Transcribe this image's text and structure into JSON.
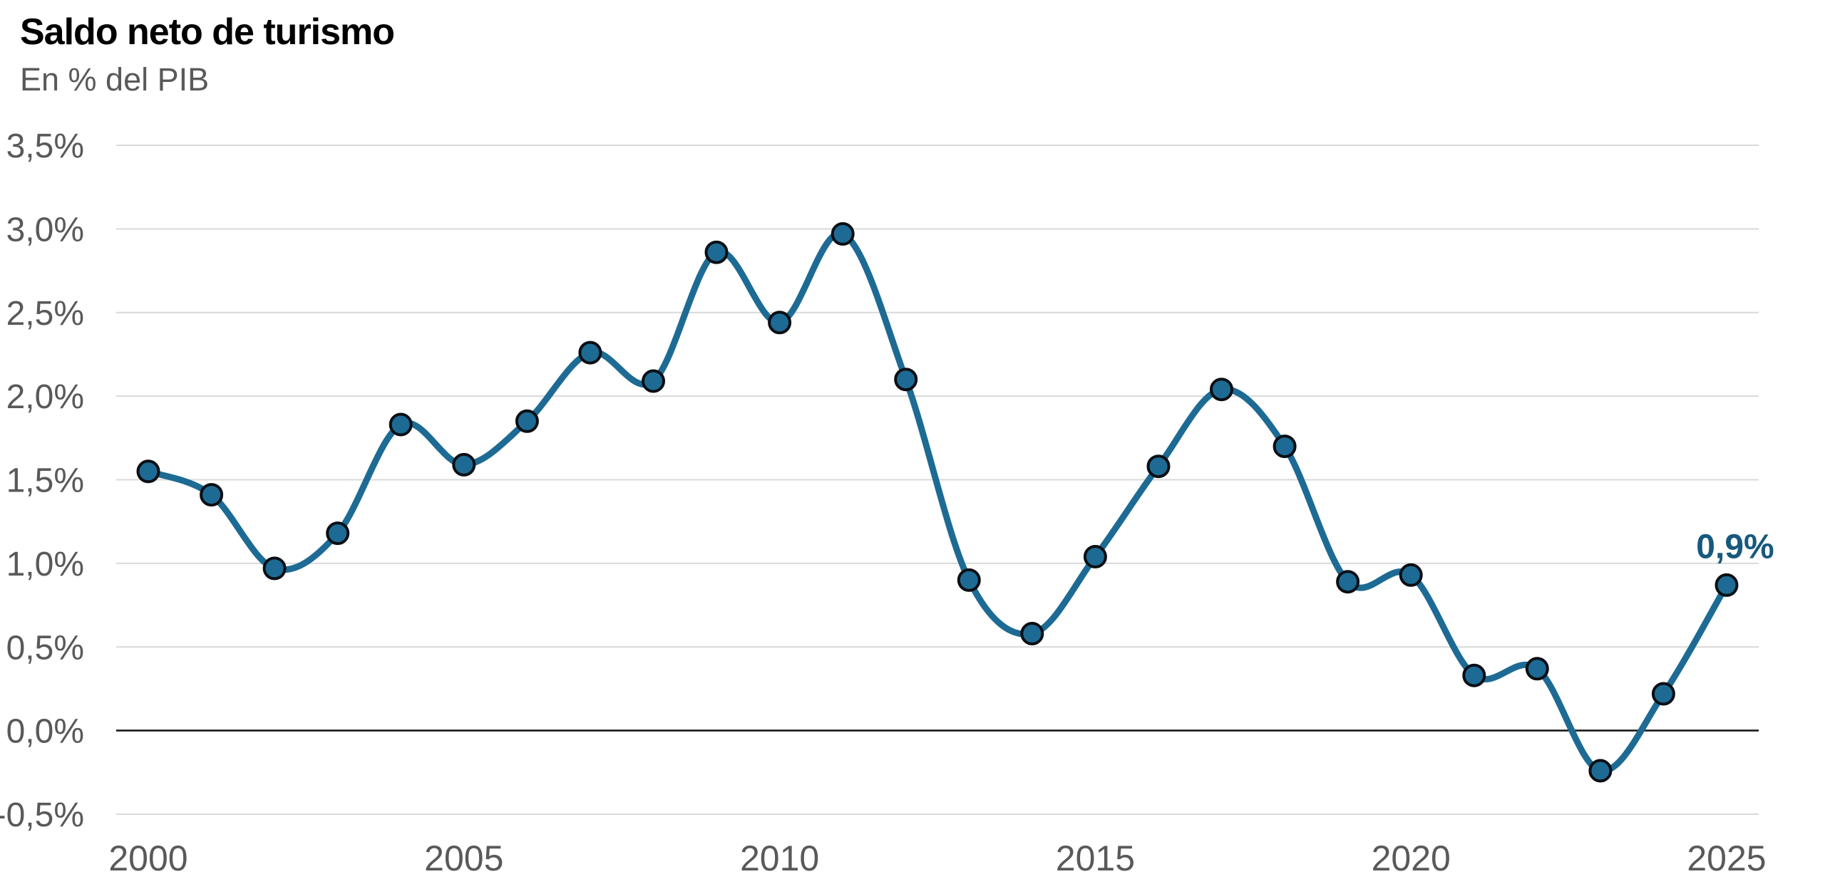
{
  "header": {
    "title": "Saldo neto de turismo",
    "subtitle": "En % del PIB"
  },
  "chart_data": {
    "type": "line",
    "title": "Saldo neto de turismo",
    "subtitle": "En % del PIB",
    "xlabel": "",
    "ylabel": "En % del PIB",
    "x": [
      2000,
      2001,
      2002,
      2003,
      2004,
      2005,
      2006,
      2007,
      2008,
      2009,
      2010,
      2011,
      2012,
      2013,
      2014,
      2015,
      2016,
      2017,
      2018,
      2019,
      2020,
      2021,
      2022,
      2023,
      2024,
      2025
    ],
    "series": [
      {
        "name": "Saldo neto de turismo (% del PIB)",
        "values": [
          1.55,
          1.41,
          0.97,
          1.18,
          1.83,
          1.59,
          1.85,
          2.26,
          2.09,
          2.86,
          2.44,
          2.97,
          2.1,
          0.9,
          0.58,
          1.04,
          1.58,
          2.04,
          1.7,
          0.89,
          0.93,
          0.33,
          0.37,
          -0.24,
          0.22,
          0.87
        ]
      }
    ],
    "ylim": [
      -0.5,
      3.5
    ],
    "grid": "horizontal",
    "line_smoothing": true,
    "markers": true,
    "legend_position": "none",
    "y_ticks": [
      {
        "value": 3.5,
        "label": "3,5%"
      },
      {
        "value": 3.0,
        "label": "3,0%"
      },
      {
        "value": 2.5,
        "label": "2,5%"
      },
      {
        "value": 2.0,
        "label": "2,0%"
      },
      {
        "value": 1.5,
        "label": "1,5%"
      },
      {
        "value": 1.0,
        "label": "1,0%"
      },
      {
        "value": 0.5,
        "label": "0,5%"
      },
      {
        "value": 0.0,
        "label": "0,0%"
      },
      {
        "value": -0.5,
        "label": "-0,5%"
      }
    ],
    "x_ticks": [
      {
        "value": 2000,
        "label": "2000"
      },
      {
        "value": 2005,
        "label": "2005"
      },
      {
        "value": 2010,
        "label": "2010"
      },
      {
        "value": 2015,
        "label": "2015"
      },
      {
        "value": 2020,
        "label": "2020"
      },
      {
        "value": 2025,
        "label": "2025"
      }
    ],
    "end_label": "0,9%",
    "colors": {
      "line": "#1d6b94",
      "marker_fill": "#1d6b94",
      "marker_stroke": "#0b0f14",
      "grid": "#d9d9d9",
      "zero_line": "#1a1a1a",
      "axis_text": "#595959",
      "title": "#000000",
      "subtitle": "#595959",
      "end_label": "#17597e",
      "background": "#ffffff"
    }
  }
}
